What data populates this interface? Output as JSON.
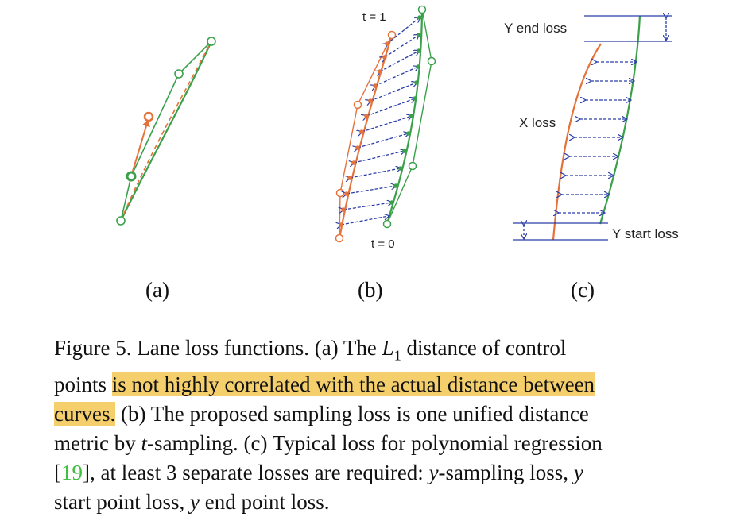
{
  "figure": {
    "panel_labels": [
      "(a)",
      "(b)",
      "(c)"
    ],
    "panel_b": {
      "t_top": "t = 1",
      "t_bottom": "t = 0"
    },
    "panel_c": {
      "y_end": "Y end loss",
      "x_loss": "X loss",
      "y_start": "Y start loss"
    },
    "colors": {
      "orange": "#e5723a",
      "green": "#3aa04a",
      "blue": "#2b3ea8",
      "highlight": "#f5cf6b",
      "ref": "#3fbf3f"
    }
  },
  "caption": {
    "line1_a": "Figure 5.  Lane loss functions.  (a) The ",
    "line1_math": "L",
    "line1_sub": "1",
    "line1_b": " distance of control",
    "line2_a": "points ",
    "line2_hl": "is not highly correlated with the actual distance between",
    "line3_hl": "curves.",
    "line3_b": "  (b) The proposed sampling loss is one unified distance",
    "line4_a": "metric by ",
    "line4_t": "t",
    "line4_b": "-sampling.  (c) Typical loss for polynomial regression",
    "line5_open": "[",
    "line5_ref": "19",
    "line5_a": "], at least 3 separate losses are required:  ",
    "line5_y1": "y",
    "line5_b": "-sampling loss, ",
    "line5_y2": "y",
    "line6_a": "start point loss, ",
    "line6_y": "y",
    "line6_b": " end point loss."
  }
}
